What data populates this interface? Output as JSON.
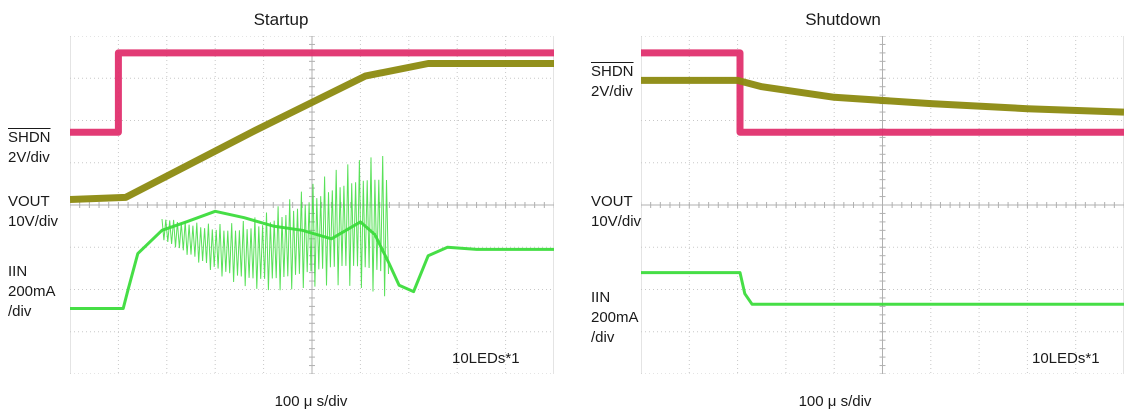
{
  "chart_data": [
    {
      "type": "line",
      "title": "Startup",
      "xlabel": "100 μ s/div",
      "grid": true,
      "x_divisions": 10,
      "y_divisions": 8,
      "annotation": "10LEDs*1",
      "channel_labels": [
        {
          "name": "SHDN",
          "overline": true,
          "scale": "2V/div"
        },
        {
          "name": "VOUT",
          "overline": false,
          "scale": "10V/div"
        },
        {
          "name": "IIN",
          "overline": false,
          "scale": "200mA",
          "scale2": "/div"
        }
      ],
      "series": [
        {
          "name": "SHDN",
          "color": "#e0306e",
          "unit": "div",
          "x": [
            0,
            1.0,
            1.0,
            10
          ],
          "y": [
            5.72,
            5.72,
            7.6,
            7.6
          ]
        },
        {
          "name": "VOUT",
          "color": "#8c8a10",
          "unit": "div",
          "x": [
            0,
            1.15,
            3.8,
            6.1,
            7.4,
            10
          ],
          "y": [
            4.13,
            4.18,
            5.75,
            7.05,
            7.35,
            7.35
          ]
        },
        {
          "name": "IIN",
          "color": "#3cdc3c",
          "unit": "div",
          "x": [
            0,
            1.1,
            1.2,
            1.4,
            1.9,
            2.4,
            3.0,
            3.6,
            4.2,
            4.8,
            5.4,
            6.0,
            6.3,
            6.6,
            6.8,
            7.1,
            7.4,
            7.8,
            8.4,
            10
          ],
          "y": [
            1.55,
            1.55,
            2.0,
            2.85,
            3.4,
            3.6,
            3.85,
            3.7,
            3.5,
            3.4,
            3.2,
            3.6,
            3.3,
            2.6,
            2.1,
            1.95,
            2.8,
            3.0,
            2.95,
            2.95
          ]
        }
      ]
    },
    {
      "type": "line",
      "title": "Shutdown",
      "xlabel": "100 μ s/div",
      "grid": true,
      "x_divisions": 10,
      "y_divisions": 8,
      "annotation": "10LEDs*1",
      "channel_labels": [
        {
          "name": "SHDN",
          "overline": true,
          "scale": "2V/div"
        },
        {
          "name": "VOUT",
          "overline": false,
          "scale": "10V/div"
        },
        {
          "name": "IIN",
          "overline": false,
          "scale": "200mA",
          "scale2": "/div"
        }
      ],
      "series": [
        {
          "name": "SHDN",
          "color": "#e0306e",
          "unit": "div",
          "x": [
            0,
            2.05,
            2.05,
            10
          ],
          "y": [
            7.6,
            7.6,
            5.72,
            5.72
          ]
        },
        {
          "name": "VOUT",
          "color": "#8c8a10",
          "unit": "div",
          "x": [
            0,
            2.0,
            2.5,
            4.0,
            6.0,
            8.0,
            10
          ],
          "y": [
            6.95,
            6.95,
            6.8,
            6.55,
            6.4,
            6.28,
            6.2
          ]
        },
        {
          "name": "IIN",
          "color": "#3cdc3c",
          "unit": "div",
          "x": [
            0,
            2.05,
            2.15,
            2.3,
            10
          ],
          "y": [
            2.4,
            2.4,
            1.9,
            1.65,
            1.65
          ]
        }
      ]
    }
  ]
}
